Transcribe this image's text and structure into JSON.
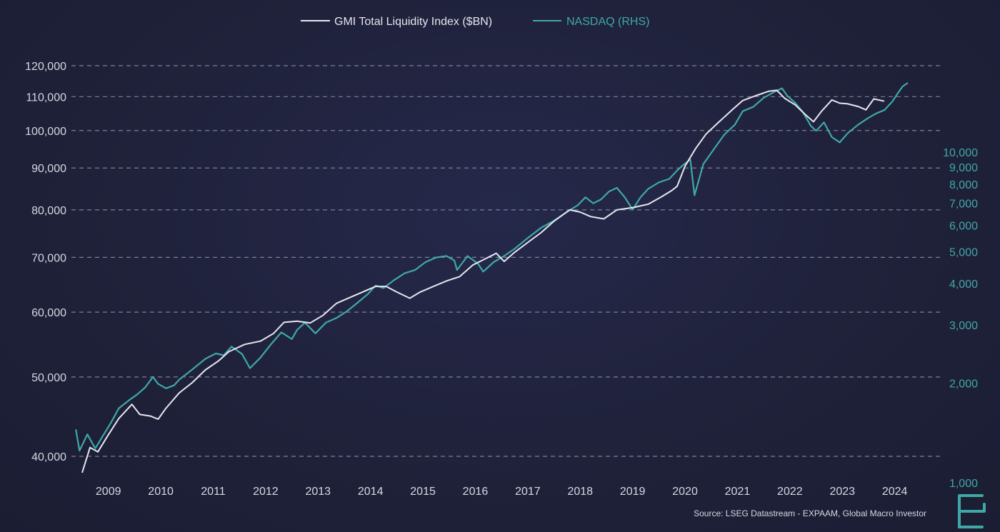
{
  "chart_data": {
    "type": "line",
    "title": "",
    "legend_position": "top-center",
    "grid": "horizontal dashed",
    "y_left": {
      "scale": "log",
      "range": [
        38000,
        122000
      ],
      "ticks": [
        {
          "value": 40000,
          "label": "40,000"
        },
        {
          "value": 50000,
          "label": "50,000"
        },
        {
          "value": 60000,
          "label": "60,000"
        },
        {
          "value": 70000,
          "label": "70,000"
        },
        {
          "value": 80000,
          "label": "80,000"
        },
        {
          "value": 90000,
          "label": "90,000"
        },
        {
          "value": 100000,
          "label": "100,000"
        },
        {
          "value": 110000,
          "label": "110,000"
        },
        {
          "value": 120000,
          "label": "120,000"
        }
      ]
    },
    "y_right": {
      "scale": "log",
      "range": [
        1000,
        17000
      ],
      "ticks": [
        {
          "value": 1000,
          "label": "1,000"
        },
        {
          "value": 2000,
          "label": "2,000"
        },
        {
          "value": 3000,
          "label": "3,000"
        },
        {
          "value": 4000,
          "label": "4,000"
        },
        {
          "value": 5000,
          "label": "5,000"
        },
        {
          "value": 6000,
          "label": "6,000"
        },
        {
          "value": 7000,
          "label": "7,000"
        },
        {
          "value": 8000,
          "label": "8,000"
        },
        {
          "value": 9000,
          "label": "9,000"
        },
        {
          "value": 10000,
          "label": "10,000"
        }
      ]
    },
    "x": {
      "range": [
        2008.35,
        2024.4
      ],
      "ticks": [
        {
          "value": 2009,
          "label": "2009"
        },
        {
          "value": 2010,
          "label": "2010"
        },
        {
          "value": 2011,
          "label": "2011"
        },
        {
          "value": 2012,
          "label": "2012"
        },
        {
          "value": 2013,
          "label": "2013"
        },
        {
          "value": 2014,
          "label": "2014"
        },
        {
          "value": 2015,
          "label": "2015"
        },
        {
          "value": 2016,
          "label": "2016"
        },
        {
          "value": 2017,
          "label": "2017"
        },
        {
          "value": 2018,
          "label": "2018"
        },
        {
          "value": 2019,
          "label": "2019"
        },
        {
          "value": 2020,
          "label": "2020"
        },
        {
          "value": 2021,
          "label": "2021"
        },
        {
          "value": 2022,
          "label": "2022"
        },
        {
          "value": 2023,
          "label": "2023"
        },
        {
          "value": 2024,
          "label": "2024"
        }
      ]
    },
    "series": [
      {
        "name": "GMI Total Liquidity Index ($BN)",
        "axis": "left",
        "color": "#e6e6f0",
        "points": [
          [
            2008.5,
            38200
          ],
          [
            2008.65,
            41000
          ],
          [
            2008.8,
            40500
          ],
          [
            2009.0,
            42500
          ],
          [
            2009.2,
            44500
          ],
          [
            2009.45,
            46300
          ],
          [
            2009.6,
            45000
          ],
          [
            2009.8,
            44800
          ],
          [
            2009.95,
            44400
          ],
          [
            2010.1,
            45800
          ],
          [
            2010.35,
            47800
          ],
          [
            2010.6,
            49200
          ],
          [
            2010.85,
            51000
          ],
          [
            2011.1,
            52300
          ],
          [
            2011.3,
            53700
          ],
          [
            2011.6,
            54800
          ],
          [
            2011.9,
            55300
          ],
          [
            2012.15,
            56500
          ],
          [
            2012.35,
            58300
          ],
          [
            2012.6,
            58500
          ],
          [
            2012.85,
            58200
          ],
          [
            2013.1,
            59500
          ],
          [
            2013.35,
            61500
          ],
          [
            2013.6,
            62500
          ],
          [
            2013.85,
            63500
          ],
          [
            2014.1,
            64500
          ],
          [
            2014.3,
            64500
          ],
          [
            2014.5,
            63500
          ],
          [
            2014.75,
            62400
          ],
          [
            2014.95,
            63500
          ],
          [
            2015.2,
            64500
          ],
          [
            2015.45,
            65500
          ],
          [
            2015.7,
            66300
          ],
          [
            2015.95,
            68500
          ],
          [
            2016.15,
            69500
          ],
          [
            2016.4,
            70800
          ],
          [
            2016.55,
            69200
          ],
          [
            2016.75,
            71000
          ],
          [
            2017.0,
            73000
          ],
          [
            2017.25,
            75000
          ],
          [
            2017.5,
            77500
          ],
          [
            2017.8,
            80000
          ],
          [
            2018.0,
            79500
          ],
          [
            2018.2,
            78500
          ],
          [
            2018.45,
            78000
          ],
          [
            2018.7,
            80000
          ],
          [
            2019.0,
            80500
          ],
          [
            2019.3,
            81300
          ],
          [
            2019.55,
            83000
          ],
          [
            2019.75,
            84500
          ],
          [
            2019.85,
            85500
          ],
          [
            2020.0,
            90500
          ],
          [
            2020.2,
            95000
          ],
          [
            2020.4,
            99000
          ],
          [
            2020.65,
            102500
          ],
          [
            2020.9,
            106000
          ],
          [
            2021.1,
            108800
          ],
          [
            2021.35,
            110300
          ],
          [
            2021.6,
            111700
          ],
          [
            2021.75,
            112000
          ],
          [
            2021.9,
            109500
          ],
          [
            2022.1,
            107500
          ],
          [
            2022.3,
            104500
          ],
          [
            2022.45,
            102500
          ],
          [
            2022.6,
            105500
          ],
          [
            2022.8,
            109000
          ],
          [
            2022.95,
            108000
          ],
          [
            2023.1,
            107800
          ],
          [
            2023.3,
            107000
          ],
          [
            2023.45,
            106000
          ],
          [
            2023.6,
            109300
          ],
          [
            2023.8,
            108600
          ]
        ]
      },
      {
        "name": "NASDAQ (RHS)",
        "axis": "right",
        "color": "#3fa8a6",
        "points": [
          [
            2008.38,
            1450
          ],
          [
            2008.45,
            1250
          ],
          [
            2008.6,
            1400
          ],
          [
            2008.75,
            1270
          ],
          [
            2008.9,
            1390
          ],
          [
            2009.05,
            1520
          ],
          [
            2009.2,
            1680
          ],
          [
            2009.4,
            1780
          ],
          [
            2009.55,
            1850
          ],
          [
            2009.7,
            1940
          ],
          [
            2009.85,
            2090
          ],
          [
            2009.95,
            1990
          ],
          [
            2010.1,
            1930
          ],
          [
            2010.25,
            1970
          ],
          [
            2010.35,
            2050
          ],
          [
            2010.6,
            2200
          ],
          [
            2010.85,
            2370
          ],
          [
            2011.05,
            2460
          ],
          [
            2011.2,
            2430
          ],
          [
            2011.35,
            2580
          ],
          [
            2011.55,
            2450
          ],
          [
            2011.7,
            2220
          ],
          [
            2011.9,
            2390
          ],
          [
            2012.1,
            2620
          ],
          [
            2012.3,
            2850
          ],
          [
            2012.5,
            2720
          ],
          [
            2012.6,
            2900
          ],
          [
            2012.75,
            3050
          ],
          [
            2012.95,
            2830
          ],
          [
            2013.15,
            3050
          ],
          [
            2013.35,
            3150
          ],
          [
            2013.55,
            3300
          ],
          [
            2013.75,
            3500
          ],
          [
            2013.95,
            3720
          ],
          [
            2014.1,
            3950
          ],
          [
            2014.25,
            3880
          ],
          [
            2014.45,
            4100
          ],
          [
            2014.65,
            4300
          ],
          [
            2014.85,
            4400
          ],
          [
            2015.05,
            4650
          ],
          [
            2015.25,
            4800
          ],
          [
            2015.45,
            4850
          ],
          [
            2015.6,
            4700
          ],
          [
            2015.65,
            4400
          ],
          [
            2015.85,
            4850
          ],
          [
            2016.05,
            4600
          ],
          [
            2016.15,
            4350
          ],
          [
            2016.35,
            4650
          ],
          [
            2016.55,
            4850
          ],
          [
            2016.75,
            5100
          ],
          [
            2017.0,
            5500
          ],
          [
            2017.25,
            5900
          ],
          [
            2017.5,
            6200
          ],
          [
            2017.75,
            6600
          ],
          [
            2017.95,
            6900
          ],
          [
            2018.1,
            7300
          ],
          [
            2018.25,
            7000
          ],
          [
            2018.4,
            7200
          ],
          [
            2018.55,
            7600
          ],
          [
            2018.7,
            7800
          ],
          [
            2018.85,
            7300
          ],
          [
            2019.0,
            6700
          ],
          [
            2019.15,
            7300
          ],
          [
            2019.3,
            7750
          ],
          [
            2019.5,
            8100
          ],
          [
            2019.7,
            8300
          ],
          [
            2019.85,
            8800
          ],
          [
            2019.95,
            9100
          ],
          [
            2020.1,
            9500
          ],
          [
            2020.18,
            7400
          ],
          [
            2020.35,
            9200
          ],
          [
            2020.55,
            10200
          ],
          [
            2020.75,
            11300
          ],
          [
            2020.95,
            12100
          ],
          [
            2021.1,
            13300
          ],
          [
            2021.3,
            13700
          ],
          [
            2021.5,
            14600
          ],
          [
            2021.7,
            15200
          ],
          [
            2021.85,
            15600
          ],
          [
            2021.95,
            14800
          ],
          [
            2022.1,
            14100
          ],
          [
            2022.25,
            13200
          ],
          [
            2022.4,
            12000
          ],
          [
            2022.5,
            11600
          ],
          [
            2022.65,
            12300
          ],
          [
            2022.8,
            11100
          ],
          [
            2022.95,
            10700
          ],
          [
            2023.1,
            11400
          ],
          [
            2023.3,
            12100
          ],
          [
            2023.5,
            12700
          ],
          [
            2023.65,
            13100
          ],
          [
            2023.8,
            13400
          ],
          [
            2023.95,
            14200
          ],
          [
            2024.05,
            15000
          ],
          [
            2024.15,
            15800
          ],
          [
            2024.25,
            16200
          ]
        ]
      }
    ],
    "source": "Source: LSEG Datastream - EXPAAM, Global Macro Investor"
  }
}
